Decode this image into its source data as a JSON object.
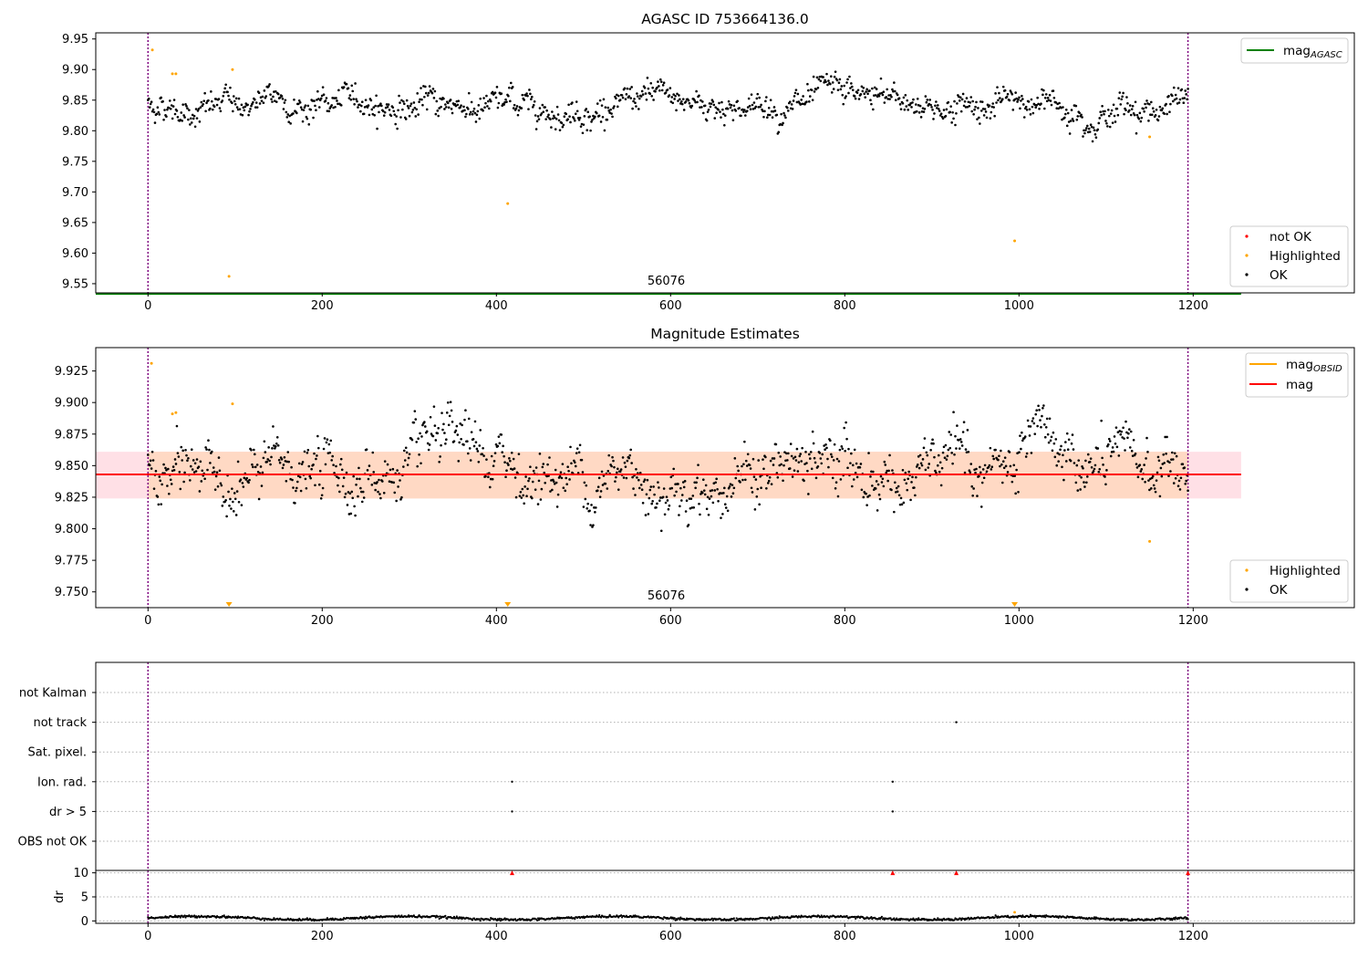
{
  "chart_data": [
    {
      "type": "scatter",
      "title": "AGASC ID 753664136.0",
      "xlim": [
        -60,
        1385
      ],
      "ylim": [
        9.535,
        9.96
      ],
      "x_ticks": [
        0,
        200,
        400,
        600,
        800,
        1000,
        1200
      ],
      "y_ticks": [
        9.55,
        9.6,
        9.65,
        9.7,
        9.75,
        9.8,
        9.85,
        9.9,
        9.95
      ],
      "y_tick_labels": [
        "9.55",
        "9.60",
        "9.65",
        "9.70",
        "9.75",
        "9.80",
        "9.85",
        "9.90",
        "9.95"
      ],
      "vlines": [
        0,
        1194
      ],
      "vline_color": "#800080",
      "obsid_label": {
        "text": "56076",
        "x": 595
      },
      "reference_line": {
        "name_main": "mag",
        "name_sub": "AGASC",
        "value": 9.533,
        "x_range": [
          -60,
          1255
        ],
        "color": "#008000"
      },
      "legend_top": [
        {
          "type": "line",
          "color": "#008000",
          "label_main": "mag",
          "label_sub": "AGASC"
        }
      ],
      "legend_bottom": [
        {
          "type": "marker",
          "color": "#ff0000",
          "label": "not OK"
        },
        {
          "type": "marker",
          "color": "#ffa500",
          "label": "Highlighted"
        },
        {
          "type": "marker",
          "color": "#000000",
          "label": "OK"
        }
      ],
      "series": [
        {
          "name": "OK",
          "color": "#000000",
          "n_points": 1190,
          "x_range": [
            0,
            1194
          ],
          "mean": 9.843,
          "scatter": 0.016
        },
        {
          "name": "Highlighted",
          "color": "#ffa500",
          "points": [
            [
              5,
              9.932
            ],
            [
              28,
              9.893
            ],
            [
              32,
              9.893
            ],
            [
              97,
              9.9
            ],
            [
              93,
              9.562
            ],
            [
              413,
              9.681
            ],
            [
              995,
              9.62
            ],
            [
              1150,
              9.79
            ]
          ]
        }
      ]
    },
    {
      "type": "scatter",
      "title": "Magnitude Estimates",
      "xlim": [
        -60,
        1385
      ],
      "ylim": [
        9.7375,
        9.9435
      ],
      "x_ticks": [
        0,
        200,
        400,
        600,
        800,
        1000,
        1200
      ],
      "y_ticks": [
        9.75,
        9.775,
        9.8,
        9.825,
        9.85,
        9.875,
        9.9,
        9.925
      ],
      "y_tick_labels": [
        "9.750",
        "9.775",
        "9.800",
        "9.825",
        "9.850",
        "9.875",
        "9.900",
        "9.925"
      ],
      "vlines": [
        0,
        1194
      ],
      "vline_color": "#800080",
      "obsid_label": {
        "text": "56076",
        "x": 595
      },
      "mag_line": {
        "value": 9.843,
        "x_range": [
          -60,
          1255
        ],
        "color": "#ff0000"
      },
      "outer_band": {
        "y": [
          9.824,
          9.861
        ],
        "x_range": [
          -60,
          1255
        ],
        "color": "#ffe0e6"
      },
      "obsid_band": {
        "y": [
          9.824,
          9.861
        ],
        "x_range": [
          0,
          1194
        ],
        "color": "#ffd9c4"
      },
      "legend_top": [
        {
          "type": "line",
          "color": "#ffa500",
          "label_main": "mag",
          "label_sub": "OBSID"
        },
        {
          "type": "line",
          "color": "#ff0000",
          "label_main": "mag",
          "label_sub": ""
        }
      ],
      "legend_bottom": [
        {
          "type": "marker",
          "color": "#ffa500",
          "label": "Highlighted"
        },
        {
          "type": "marker",
          "color": "#000000",
          "label": "OK"
        }
      ],
      "series": [
        {
          "name": "OK",
          "color": "#000000",
          "n_points": 1190,
          "x_range": [
            0,
            1194
          ],
          "mean": 9.843,
          "scatter": 0.016
        },
        {
          "name": "Highlighted",
          "color": "#ffa500",
          "points": [
            [
              4,
              9.931
            ],
            [
              28,
              9.891
            ],
            [
              32,
              9.892
            ],
            [
              97,
              9.899
            ],
            [
              1150,
              9.79
            ]
          ]
        },
        {
          "name": "off-scale (below)",
          "color": "#ffa500",
          "marker": "triangle-down",
          "x": [
            93,
            413,
            995
          ]
        }
      ]
    },
    {
      "type": "scatter",
      "title": "",
      "xlim": [
        -60,
        1385
      ],
      "x_ticks": [
        0,
        200,
        400,
        600,
        800,
        1000,
        1200
      ],
      "vlines": [
        0,
        1194
      ],
      "vline_color": "#800080",
      "flag_rows": [
        "not Kalman",
        "not track",
        "Sat. pixel.",
        "Ion. rad.",
        "dr > 5",
        "OBS not OK"
      ],
      "flag_points": [
        {
          "flag": "not track",
          "x": [
            928
          ]
        },
        {
          "flag": "Ion. rad.",
          "x": [
            418,
            855
          ]
        },
        {
          "flag": "dr > 5",
          "x": [
            418,
            855
          ]
        }
      ],
      "dr_panel": {
        "ylabel": "dr",
        "ylim": [
          -0.5,
          10.5
        ],
        "y_ticks": [
          0,
          5,
          10
        ],
        "y_tick_labels": [
          "0",
          "5",
          "10"
        ],
        "mean": 0.6,
        "highlighted": [
          [
            995,
            1.8
          ]
        ],
        "clipped_markers": {
          "color": "#ff0000",
          "x": [
            418,
            855,
            928,
            1194
          ]
        }
      }
    }
  ]
}
